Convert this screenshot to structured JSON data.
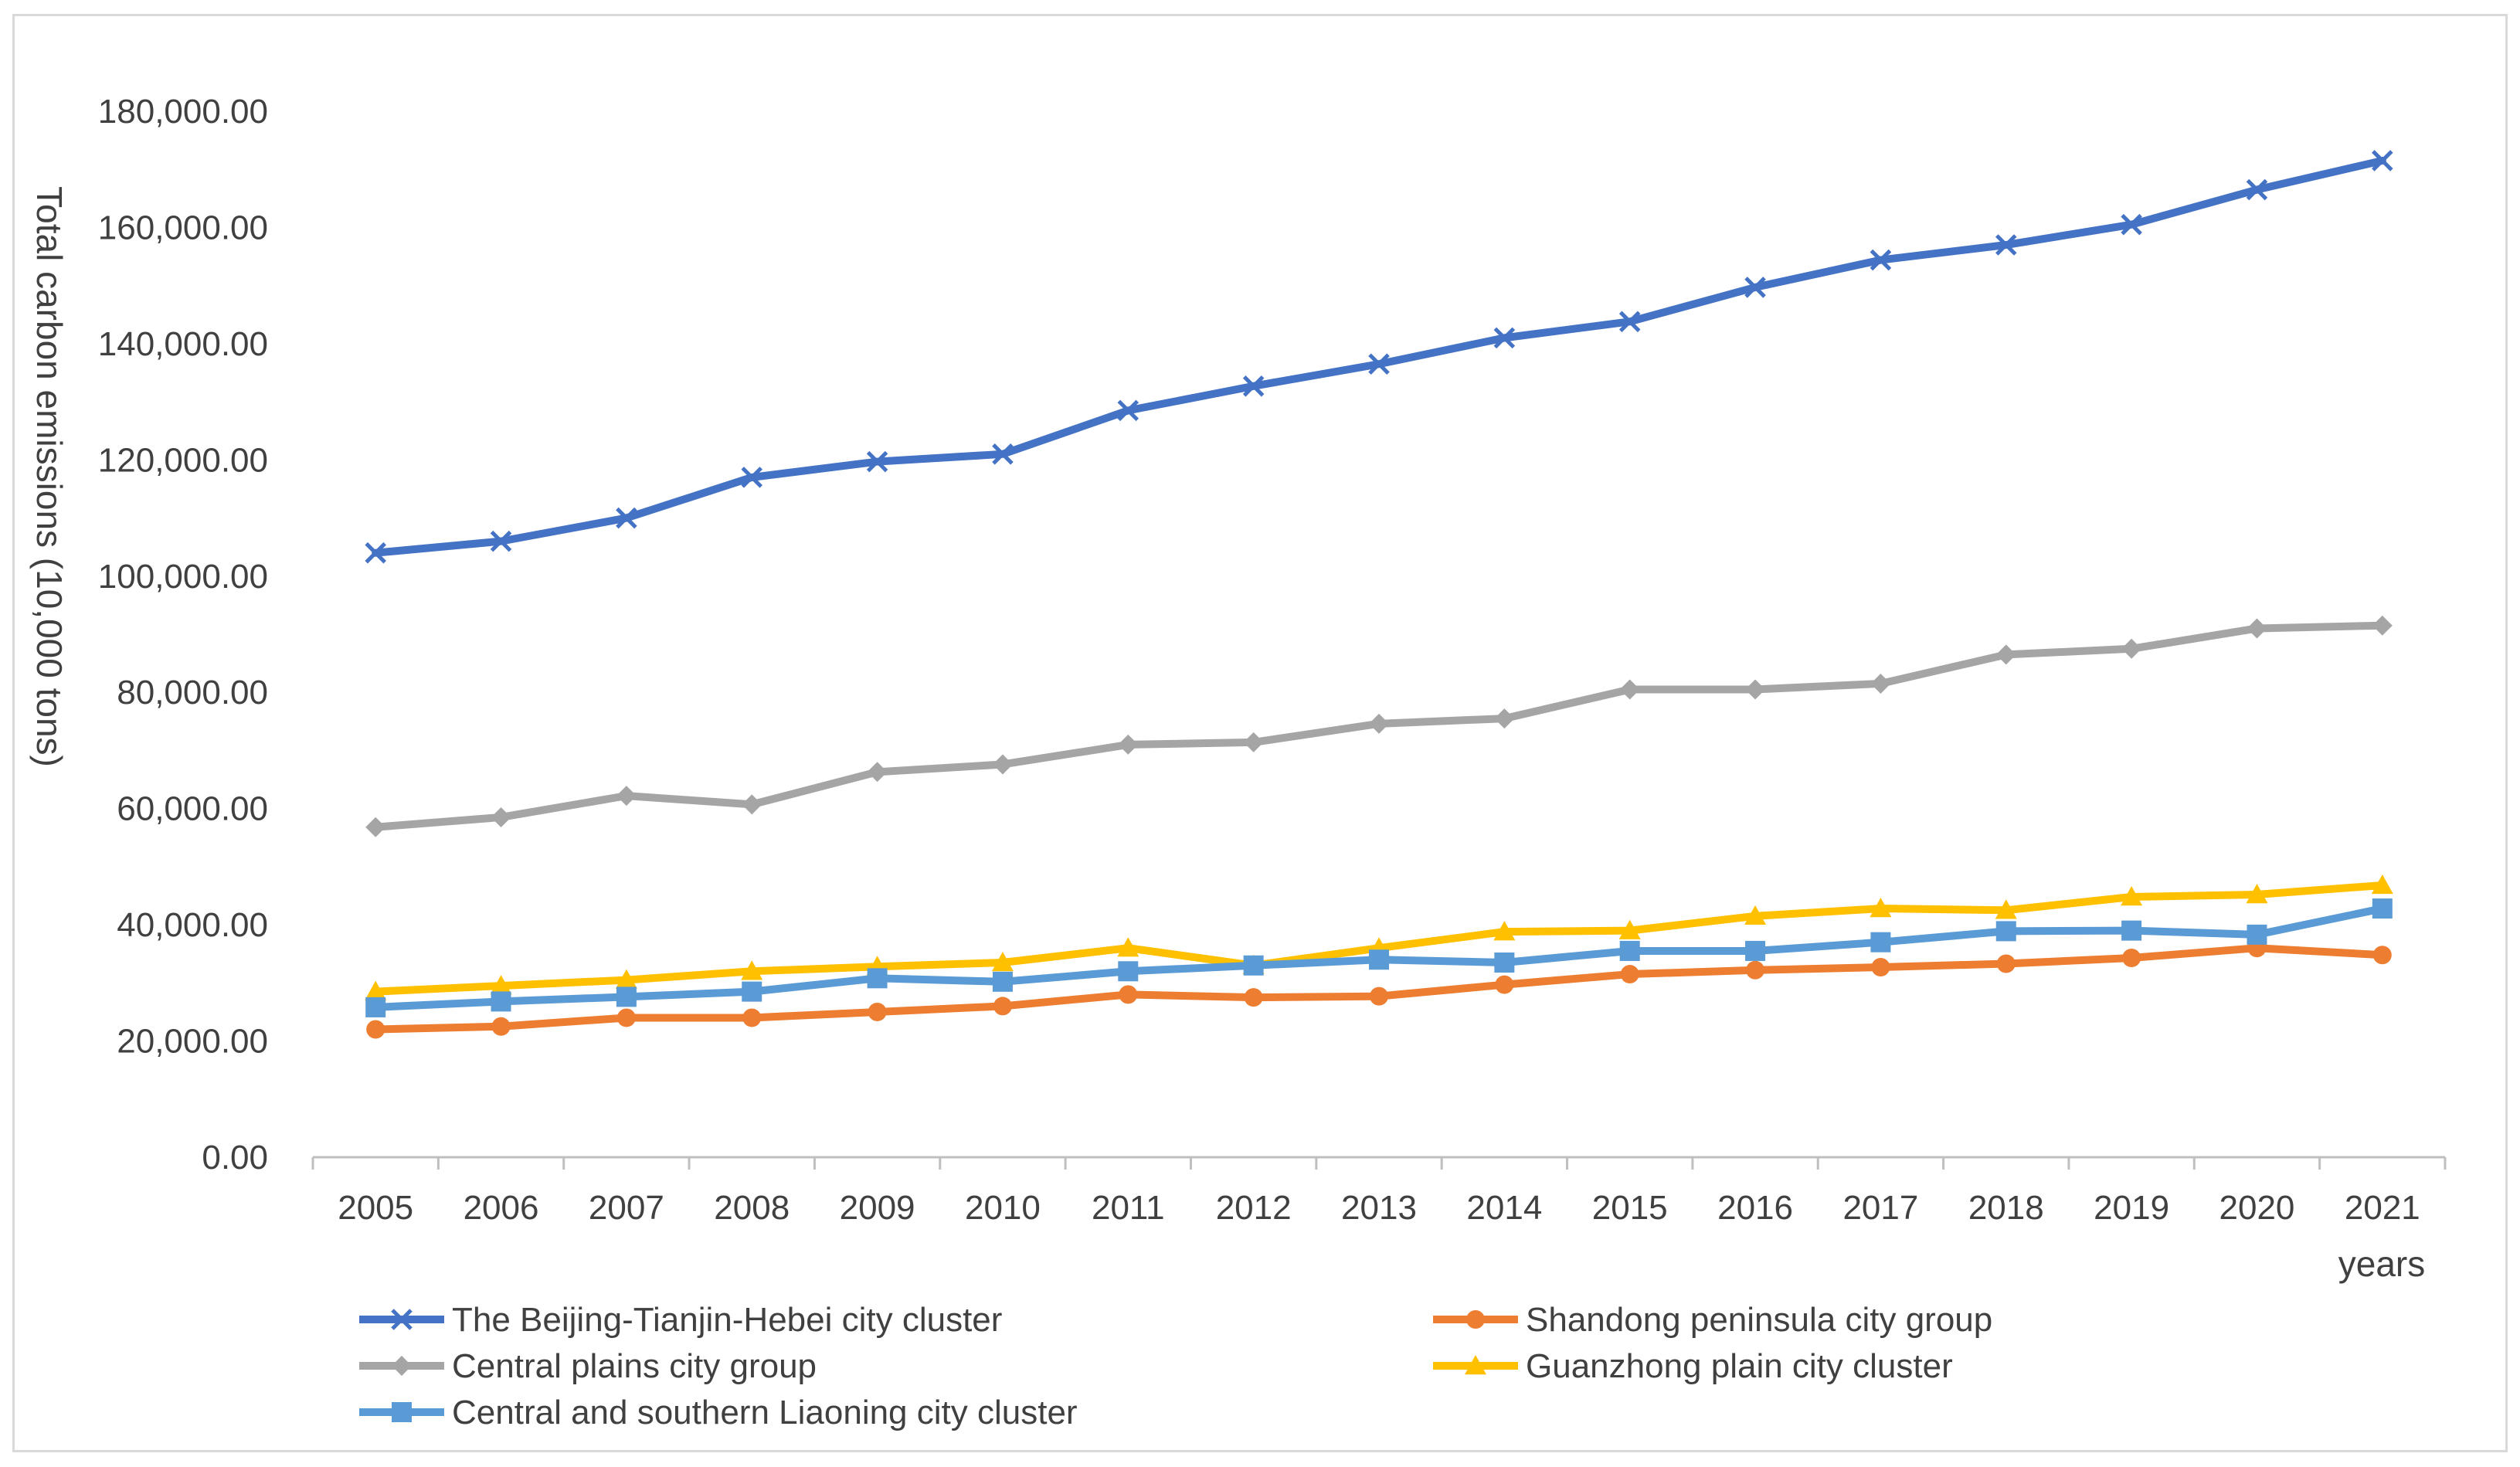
{
  "chart_data": {
    "type": "line",
    "title": "",
    "xlabel": "years",
    "ylabel": "Total carbon emissions (10,000 tons)",
    "ylim": [
      0,
      180000
    ],
    "yticks": [
      "0.00",
      "20,000.00",
      "40,000.00",
      "60,000.00",
      "80,000.00",
      "100,000.00",
      "120,000.00",
      "140,000.00",
      "160,000.00",
      "180,000.00"
    ],
    "categories": [
      "2005",
      "2006",
      "2007",
      "2008",
      "2009",
      "2010",
      "2011",
      "2012",
      "2013",
      "2014",
      "2015",
      "2016",
      "2017",
      "2018",
      "2019",
      "2020",
      "2021"
    ],
    "series": [
      {
        "name": "The Beijing-Tianjin-Hebei city cluster",
        "color": "#4472c4",
        "marker": "x",
        "values": [
          104000,
          106000,
          110000,
          117000,
          119700,
          121000,
          128500,
          132700,
          136500,
          141000,
          143800,
          149700,
          154400,
          157000,
          160500,
          166500,
          171500
        ]
      },
      {
        "name": "Shandong peninsula city group",
        "color": "#ed7d31",
        "marker": "circle",
        "values": [
          22000,
          22500,
          24000,
          24000,
          25000,
          26000,
          28000,
          27500,
          27700,
          29700,
          31500,
          32200,
          32700,
          33300,
          34300,
          36000,
          34800
        ]
      },
      {
        "name": "Central plains city group",
        "color": "#a5a5a5",
        "marker": "diamond",
        "values": [
          56800,
          58500,
          62200,
          60700,
          66300,
          67600,
          71000,
          71400,
          74600,
          75500,
          80500,
          80500,
          81500,
          86500,
          87500,
          91000,
          91500
        ]
      },
      {
        "name": "Guanzhong plain city cluster",
        "color": "#ffc000",
        "marker": "triangle",
        "values": [
          28500,
          29500,
          30500,
          32000,
          32800,
          33500,
          36000,
          33000,
          36000,
          38800,
          39000,
          41500,
          42800,
          42500,
          44800,
          45200,
          46800
        ]
      },
      {
        "name": "Central and southern Liaoning city cluster",
        "color": "#5b9bd5",
        "marker": "square",
        "values": [
          25800,
          26800,
          27600,
          28500,
          30800,
          30200,
          32000,
          33000,
          34000,
          33500,
          35500,
          35500,
          37000,
          38900,
          39000,
          38300,
          42800
        ]
      }
    ],
    "legend_placement": "bottom"
  }
}
